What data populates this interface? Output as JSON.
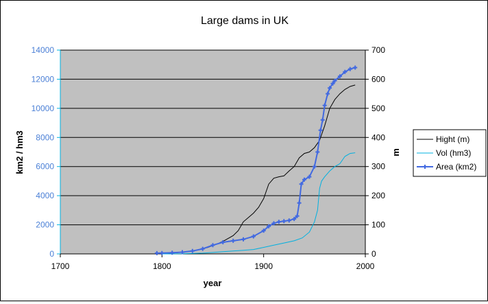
{
  "chart_data": {
    "type": "line",
    "title": "Large dams in UK",
    "xlabel": "year",
    "ylabel_left": "km2 / hm3",
    "ylabel_right": "m",
    "xlim": [
      1700,
      2000
    ],
    "ylim_left": [
      0,
      14000
    ],
    "ylim_right": [
      0,
      700
    ],
    "x_ticks": [
      "1700",
      "1800",
      "1900",
      "2000"
    ],
    "y_ticks_left": [
      "0",
      "2000",
      "4000",
      "6000",
      "8000",
      "10000",
      "12000",
      "14000"
    ],
    "y_ticks_right": [
      "0",
      "100",
      "200",
      "300",
      "400",
      "500",
      "600",
      "700"
    ],
    "grid": "horizontal major gridlines",
    "plot_background": "#c0c0c0",
    "legend_position": "right",
    "series": [
      {
        "name": "Hight (m)",
        "axis": "right",
        "color": "#000000",
        "marker": "none",
        "x": [
          1795,
          1805,
          1815,
          1825,
          1835,
          1845,
          1855,
          1862,
          1870,
          1875,
          1880,
          1885,
          1890,
          1895,
          1900,
          1905,
          1910,
          1915,
          1920,
          1925,
          1930,
          1935,
          1940,
          1945,
          1950,
          1955,
          1960,
          1965,
          1970,
          1975,
          1980,
          1985,
          1990
        ],
        "values": [
          1,
          2,
          4,
          8,
          14,
          22,
          35,
          47,
          63,
          80,
          110,
          125,
          140,
          160,
          190,
          240,
          260,
          265,
          268,
          285,
          300,
          330,
          345,
          350,
          365,
          390,
          440,
          500,
          530,
          550,
          565,
          575,
          580
        ]
      },
      {
        "name": "Vol (hm3)",
        "axis": "left",
        "color": "#00b0e0",
        "marker": "none",
        "x": [
          1800,
          1820,
          1840,
          1850,
          1860,
          1870,
          1880,
          1890,
          1900,
          1910,
          1920,
          1930,
          1938,
          1945,
          1950,
          1953,
          1955,
          1957,
          1960,
          1965,
          1970,
          1975,
          1980,
          1985,
          1990
        ],
        "values": [
          0,
          10,
          50,
          100,
          150,
          200,
          250,
          300,
          450,
          600,
          750,
          900,
          1100,
          1500,
          2200,
          3000,
          4500,
          5000,
          5300,
          5700,
          6000,
          6200,
          6700,
          6900,
          6950
        ]
      },
      {
        "name": "Area (km2)",
        "axis": "left",
        "color": "#4169e1",
        "marker": "plus",
        "x": [
          1795,
          1800,
          1810,
          1820,
          1830,
          1840,
          1850,
          1860,
          1870,
          1880,
          1890,
          1900,
          1905,
          1910,
          1915,
          1920,
          1925,
          1930,
          1933,
          1935,
          1937,
          1940,
          1945,
          1950,
          1953,
          1956,
          1958,
          1960,
          1963,
          1965,
          1968,
          1970,
          1975,
          1980,
          1985,
          1990
        ],
        "values": [
          50,
          60,
          80,
          120,
          200,
          350,
          600,
          800,
          900,
          1000,
          1200,
          1600,
          1900,
          2100,
          2200,
          2250,
          2300,
          2400,
          2600,
          3500,
          4800,
          5100,
          5300,
          6000,
          7000,
          8500,
          9200,
          10200,
          11000,
          11400,
          11700,
          11900,
          12200,
          12500,
          12700,
          12800
        ]
      }
    ]
  }
}
